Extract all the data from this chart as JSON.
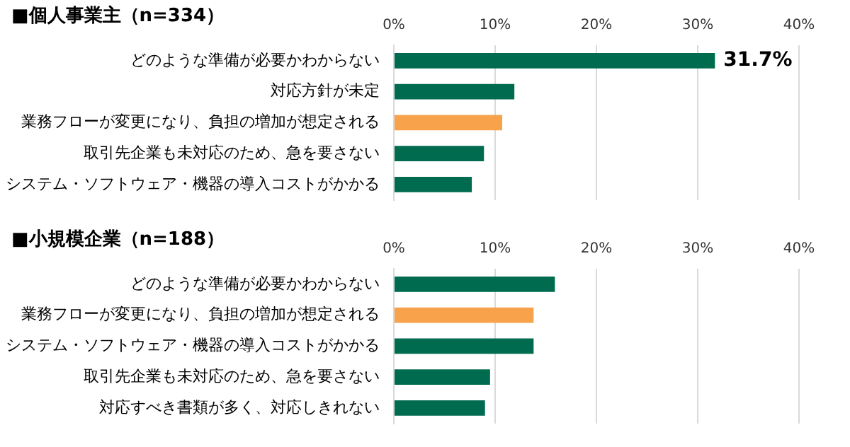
{
  "chart_data": [
    {
      "type": "bar",
      "orientation": "horizontal",
      "title": "■個人事業主（n=334）",
      "categories": [
        "どのような準備が必要かわからない",
        "対応方針が未定",
        "業務フローが変更になり、負担の増加が想定される",
        "取引先企業も未対応のため、急を要さない",
        "システム・ソフトウェア・機器の導入コストがかかる"
      ],
      "values": [
        31.7,
        11.9,
        10.7,
        8.9,
        7.7
      ],
      "colors": [
        "#006b4f",
        "#006b4f",
        "#f8a24c",
        "#006b4f",
        "#006b4f"
      ],
      "value_labels": [
        "31.7%",
        null,
        null,
        null,
        null
      ],
      "xlim": [
        0,
        40
      ],
      "xticks": [
        {
          "value": 0,
          "label": "0%"
        },
        {
          "value": 10,
          "label": "10%"
        },
        {
          "value": 20,
          "label": "20%"
        },
        {
          "value": 30,
          "label": "30%"
        },
        {
          "value": 40,
          "label": "40%"
        }
      ],
      "grid": "x",
      "legend": false
    },
    {
      "type": "bar",
      "orientation": "horizontal",
      "title": "■小規模企業（n=188）",
      "categories": [
        "どのような準備が必要かわからない",
        "業務フローが変更になり、負担の増加が想定される",
        "システム・ソフトウェア・機器の導入コストがかかる",
        "取引先企業も未対応のため、急を要さない",
        "対応すべき書類が多く、対応しきれない"
      ],
      "values": [
        15.9,
        13.8,
        13.8,
        9.5,
        9.0
      ],
      "colors": [
        "#006b4f",
        "#f8a24c",
        "#006b4f",
        "#006b4f",
        "#006b4f"
      ],
      "xlim": [
        0,
        40
      ],
      "xticks": [
        {
          "value": 0,
          "label": "0%"
        },
        {
          "value": 10,
          "label": "10%"
        },
        {
          "value": 20,
          "label": "20%"
        },
        {
          "value": 30,
          "label": "30%"
        },
        {
          "value": 40,
          "label": "40%"
        }
      ],
      "grid": "x",
      "legend": false
    }
  ]
}
